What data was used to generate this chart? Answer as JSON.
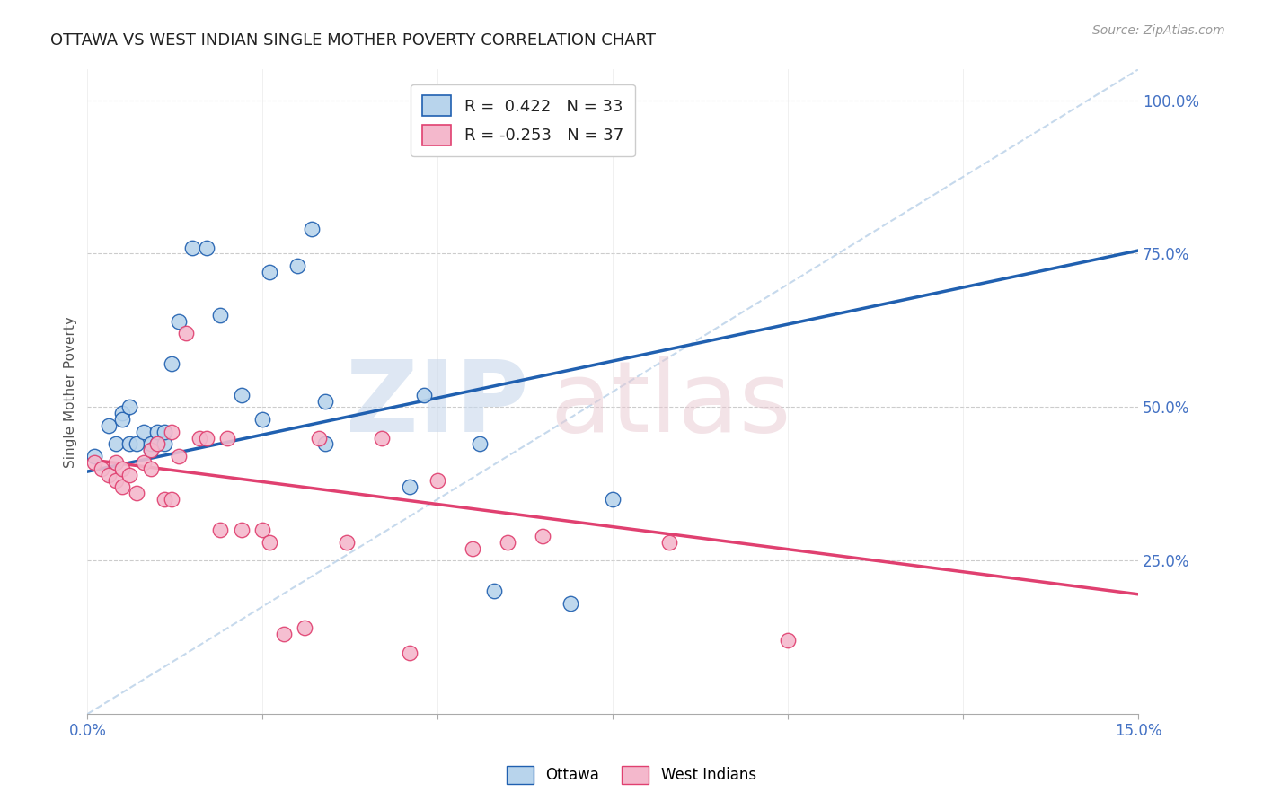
{
  "title": "OTTAWA VS WEST INDIAN SINGLE MOTHER POVERTY CORRELATION CHART",
  "source": "Source: ZipAtlas.com",
  "ylabel": "Single Mother Poverty",
  "ylabel_right_labels": [
    "100.0%",
    "75.0%",
    "50.0%",
    "25.0%"
  ],
  "ylabel_right_values": [
    1.0,
    0.75,
    0.5,
    0.25
  ],
  "legend_ottawa": "R =  0.422   N = 33",
  "legend_west_indians": "R = -0.253   N = 37",
  "ottawa_color": "#b8d4ec",
  "west_indian_color": "#f4b8cc",
  "trendline_ottawa_color": "#2060b0",
  "trendline_west_indian_color": "#e04070",
  "trendline_dashed_color": "#b8d0e8",
  "background_color": "#ffffff",
  "ottawa_x": [
    0.001,
    0.003,
    0.004,
    0.005,
    0.005,
    0.006,
    0.006,
    0.007,
    0.008,
    0.009,
    0.009,
    0.01,
    0.01,
    0.011,
    0.011,
    0.012,
    0.013,
    0.015,
    0.017,
    0.019,
    0.022,
    0.025,
    0.026,
    0.03,
    0.032,
    0.034,
    0.034,
    0.046,
    0.048,
    0.056,
    0.058,
    0.069,
    0.075
  ],
  "ottawa_y": [
    0.42,
    0.47,
    0.44,
    0.49,
    0.48,
    0.5,
    0.44,
    0.44,
    0.46,
    0.43,
    0.44,
    0.44,
    0.46,
    0.44,
    0.46,
    0.57,
    0.64,
    0.76,
    0.76,
    0.65,
    0.52,
    0.48,
    0.72,
    0.73,
    0.79,
    0.51,
    0.44,
    0.37,
    0.52,
    0.44,
    0.2,
    0.18,
    0.35
  ],
  "west_indian_x": [
    0.001,
    0.002,
    0.003,
    0.004,
    0.004,
    0.005,
    0.005,
    0.006,
    0.007,
    0.008,
    0.009,
    0.009,
    0.01,
    0.011,
    0.012,
    0.012,
    0.013,
    0.014,
    0.016,
    0.017,
    0.019,
    0.02,
    0.022,
    0.025,
    0.026,
    0.028,
    0.031,
    0.033,
    0.037,
    0.042,
    0.046,
    0.05,
    0.055,
    0.06,
    0.065,
    0.083,
    0.1
  ],
  "west_indian_y": [
    0.41,
    0.4,
    0.39,
    0.41,
    0.38,
    0.4,
    0.37,
    0.39,
    0.36,
    0.41,
    0.4,
    0.43,
    0.44,
    0.35,
    0.35,
    0.46,
    0.42,
    0.62,
    0.45,
    0.45,
    0.3,
    0.45,
    0.3,
    0.3,
    0.28,
    0.13,
    0.14,
    0.45,
    0.28,
    0.45,
    0.1,
    0.38,
    0.27,
    0.28,
    0.29,
    0.28,
    0.12
  ],
  "xmin": 0.0,
  "xmax": 0.15,
  "ymin": 0.0,
  "ymax": 1.05,
  "ottawa_trend_x": [
    0.0,
    0.15
  ],
  "ottawa_trend_y": [
    0.395,
    0.755
  ],
  "west_indian_trend_x": [
    0.0,
    0.15
  ],
  "west_indian_trend_y": [
    0.415,
    0.195
  ],
  "dashed_trend_x": [
    0.0,
    0.15
  ],
  "dashed_trend_y": [
    0.0,
    1.05
  ],
  "xtick_positions": [
    0.0,
    0.025,
    0.05,
    0.075,
    0.1,
    0.125,
    0.15
  ],
  "ytick_dashed_positions": [
    0.25,
    0.5,
    0.75,
    1.0
  ]
}
